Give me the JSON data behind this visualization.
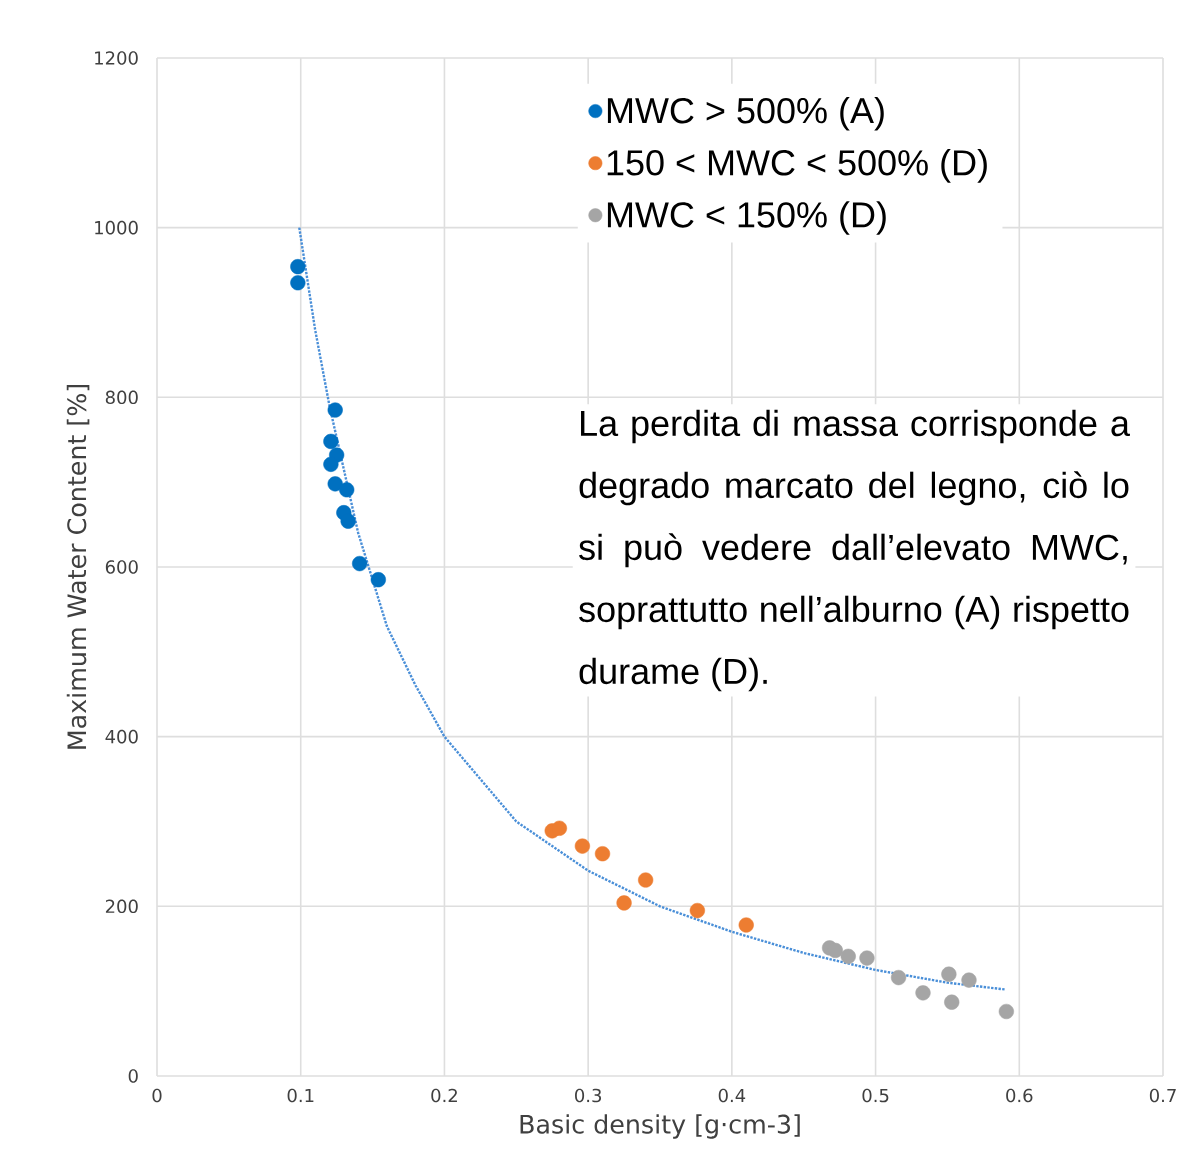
{
  "chart_data": {
    "type": "scatter",
    "xlabel": "Basic density [g·cm-3]",
    "ylabel": "Maximum Water Content [%]",
    "xlim": [
      0,
      0.7
    ],
    "ylim": [
      0,
      1200
    ],
    "xticks": [
      0,
      0.1,
      0.2,
      0.3,
      0.4,
      0.5,
      0.6,
      0.7
    ],
    "yticks": [
      0,
      200,
      400,
      600,
      800,
      1000,
      1200
    ],
    "grid": true,
    "legend": "top right",
    "marker": "circle",
    "series": [
      {
        "name": "MWC > 500% (A)",
        "color": "#0070c0",
        "x": [
          0.098,
          0.098,
          0.124,
          0.121,
          0.125,
          0.121,
          0.124,
          0.132,
          0.13,
          0.133,
          0.141,
          0.154
        ],
        "values": [
          954,
          935,
          785,
          748,
          732,
          721,
          698,
          691,
          664,
          654,
          604,
          585
        ]
      },
      {
        "name": "150 < MWC < 500% (D)",
        "color": "#ed7d31",
        "x": [
          0.275,
          0.28,
          0.296,
          0.31,
          0.34,
          0.325,
          0.376,
          0.41
        ],
        "values": [
          289,
          292,
          271,
          262,
          231,
          204,
          195,
          178
        ]
      },
      {
        "name": "MWC < 150% (D)",
        "color": "#a5a5a5",
        "x": [
          0.468,
          0.472,
          0.481,
          0.494,
          0.516,
          0.533,
          0.551,
          0.553,
          0.565,
          0.591
        ],
        "values": [
          151,
          148,
          141,
          139,
          116,
          98,
          120,
          87,
          113,
          76
        ]
      },
      {
        "type": "line",
        "line_style": "dotted",
        "marker": "none",
        "color": "#4a8fd8",
        "x": [
          0.099,
          0.11,
          0.12,
          0.14,
          0.16,
          0.18,
          0.2,
          0.25,
          0.3,
          0.35,
          0.4,
          0.45,
          0.5,
          0.55,
          0.59
        ],
        "values": [
          1000,
          880,
          790,
          640,
          530,
          460,
          400,
          300,
          242,
          200,
          170,
          145,
          125,
          110,
          102
        ]
      }
    ],
    "annotations": [
      "La perdita di massa corrisponde a degrado marcato del legno, ciò lo si può vedere dall’elevato MWC, soprattutto nell’alburno (A) rispetto durame (D)."
    ]
  }
}
